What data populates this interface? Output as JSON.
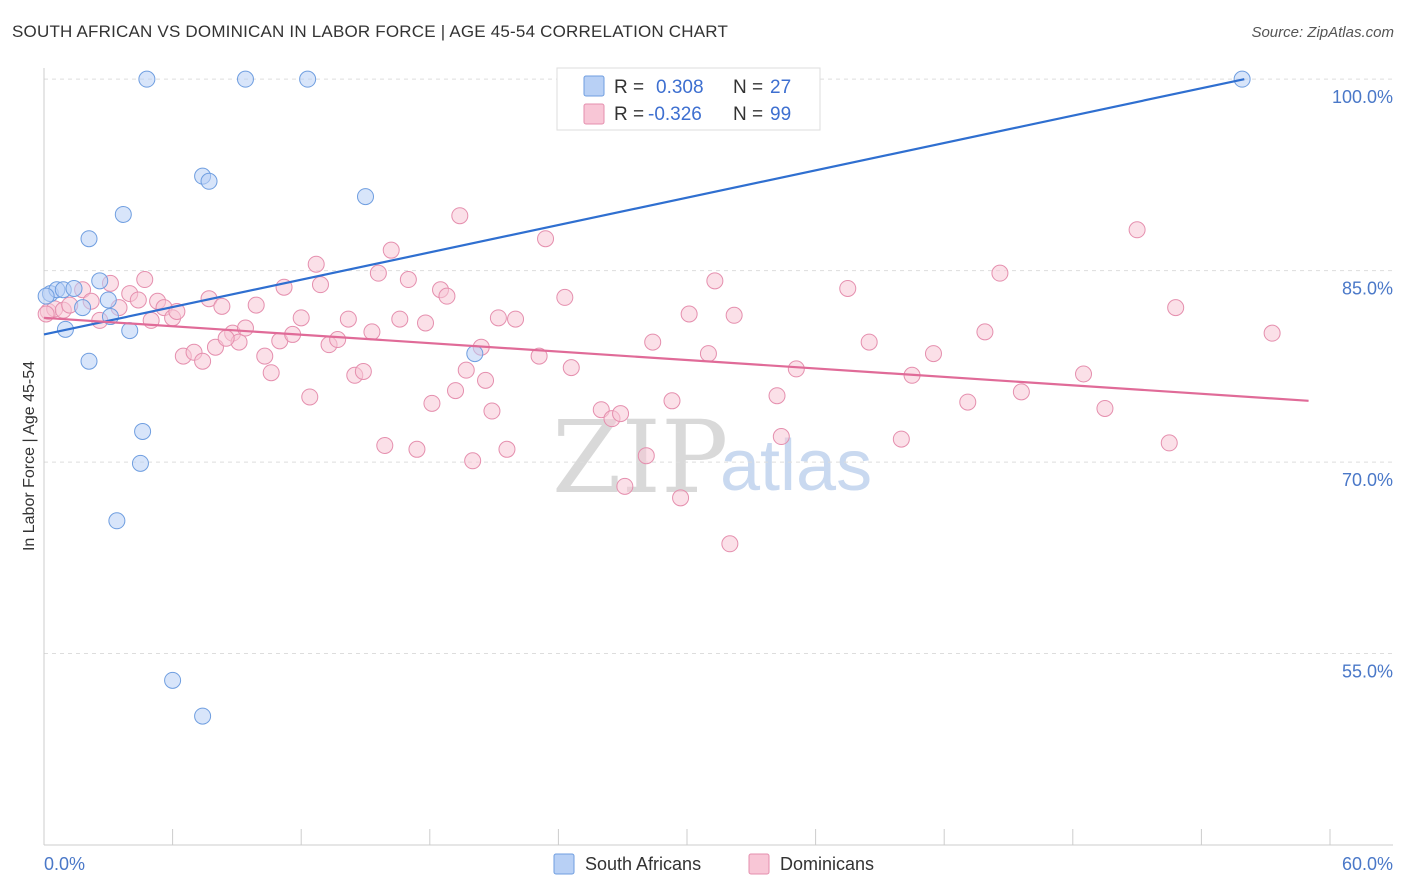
{
  "title": "SOUTH AFRICAN VS DOMINICAN IN LABOR FORCE | AGE 45-54 CORRELATION CHART",
  "source": "Source: ZipAtlas.com",
  "watermark": {
    "zip": "ZIP",
    "atlas": "atlas"
  },
  "colors": {
    "blue_fill": "#b8d0f5",
    "blue_stroke": "#6f9ee0",
    "blue_line": "#2f6fd0",
    "pink_fill": "#f8c6d6",
    "pink_stroke": "#e58fae",
    "pink_line": "#e06b98",
    "grid": "#dddddd",
    "axis_text": "#4a78c8"
  },
  "legend": {
    "rows": [
      {
        "r_label": "R =",
        "r_value": "0.308",
        "n_label": "N =",
        "n_value": "27"
      },
      {
        "r_label": "R =",
        "r_value": "-0.326",
        "n_label": "N =",
        "n_value": "99"
      }
    ]
  },
  "bottom_legend": [
    "South Africans",
    "Dominicans"
  ],
  "chart_data": {
    "type": "scatter",
    "title": "SOUTH AFRICAN VS DOMINICAN IN LABOR FORCE | AGE 45-54 CORRELATION CHART",
    "xlabel": "",
    "ylabel": "In Labor Force | Age 45-54",
    "xlim": [
      0,
      60
    ],
    "ylim": [
      40,
      101.5
    ],
    "x_tick_labels": [
      "0.0%",
      "60.0%"
    ],
    "y_ticks": [
      {
        "value": 100,
        "label": "100.0%"
      },
      {
        "value": 85,
        "label": "85.0%"
      },
      {
        "value": 70,
        "label": "70.0%"
      },
      {
        "value": 55,
        "label": "55.0%"
      }
    ],
    "gridlines": true,
    "series": [
      {
        "name": "South Africans",
        "color": "blue",
        "trend": {
          "x": [
            0,
            56
          ],
          "y": [
            80.0,
            100.0
          ]
        },
        "points": [
          [
            0.3,
            83.2
          ],
          [
            0.6,
            83.5
          ],
          [
            0.9,
            83.5
          ],
          [
            1.0,
            80.4
          ],
          [
            1.4,
            83.6
          ],
          [
            1.8,
            82.1
          ],
          [
            2.1,
            87.5
          ],
          [
            2.1,
            77.9
          ],
          [
            2.6,
            84.2
          ],
          [
            3.0,
            82.7
          ],
          [
            3.1,
            81.4
          ],
          [
            3.7,
            89.4
          ],
          [
            4.0,
            80.3
          ],
          [
            4.5,
            69.9
          ],
          [
            4.6,
            72.4
          ],
          [
            4.8,
            100.0
          ],
          [
            3.4,
            65.4
          ],
          [
            6.0,
            52.9
          ],
          [
            7.4,
            92.4
          ],
          [
            7.7,
            92.0
          ],
          [
            7.4,
            50.1
          ],
          [
            9.4,
            100.0
          ],
          [
            12.3,
            100.0
          ],
          [
            15.0,
            90.8
          ],
          [
            20.1,
            78.5
          ],
          [
            55.9,
            100.0
          ],
          [
            0.1,
            83.0
          ]
        ]
      },
      {
        "name": "Dominicans",
        "color": "pink",
        "trend": {
          "x": [
            0,
            59
          ],
          "y": [
            81.3,
            74.8
          ]
        },
        "points": [
          [
            0.2,
            81.8
          ],
          [
            0.5,
            82.0
          ],
          [
            0.9,
            81.9
          ],
          [
            1.2,
            82.3
          ],
          [
            1.8,
            83.5
          ],
          [
            2.2,
            82.6
          ],
          [
            2.6,
            81.1
          ],
          [
            3.1,
            84.0
          ],
          [
            3.5,
            82.1
          ],
          [
            4.0,
            83.2
          ],
          [
            4.4,
            82.7
          ],
          [
            4.7,
            84.3
          ],
          [
            5.0,
            81.1
          ],
          [
            5.3,
            82.6
          ],
          [
            5.6,
            82.1
          ],
          [
            6.0,
            81.3
          ],
          [
            6.2,
            81.8
          ],
          [
            6.5,
            78.3
          ],
          [
            7.0,
            78.6
          ],
          [
            7.4,
            77.9
          ],
          [
            7.7,
            82.8
          ],
          [
            8.0,
            79.0
          ],
          [
            8.3,
            82.2
          ],
          [
            8.8,
            80.1
          ],
          [
            9.1,
            79.4
          ],
          [
            9.4,
            80.5
          ],
          [
            9.9,
            82.3
          ],
          [
            10.3,
            78.3
          ],
          [
            10.6,
            77.0
          ],
          [
            11.0,
            79.5
          ],
          [
            11.2,
            83.7
          ],
          [
            11.6,
            80.0
          ],
          [
            12.0,
            81.3
          ],
          [
            12.4,
            75.1
          ],
          [
            12.7,
            85.5
          ],
          [
            12.9,
            83.9
          ],
          [
            13.3,
            79.2
          ],
          [
            13.7,
            79.6
          ],
          [
            14.2,
            81.2
          ],
          [
            14.5,
            76.8
          ],
          [
            14.9,
            77.1
          ],
          [
            15.3,
            80.2
          ],
          [
            15.6,
            84.8
          ],
          [
            15.9,
            71.3
          ],
          [
            16.2,
            86.6
          ],
          [
            16.6,
            81.2
          ],
          [
            17.0,
            84.3
          ],
          [
            17.4,
            71.0
          ],
          [
            17.8,
            80.9
          ],
          [
            18.1,
            74.6
          ],
          [
            18.5,
            83.5
          ],
          [
            18.8,
            83.0
          ],
          [
            19.2,
            75.6
          ],
          [
            19.4,
            89.3
          ],
          [
            19.7,
            77.2
          ],
          [
            20.0,
            70.1
          ],
          [
            20.4,
            79.0
          ],
          [
            20.6,
            76.4
          ],
          [
            20.9,
            74.0
          ],
          [
            21.2,
            81.3
          ],
          [
            21.6,
            71.0
          ],
          [
            22.0,
            81.2
          ],
          [
            23.1,
            78.3
          ],
          [
            23.4,
            87.5
          ],
          [
            24.3,
            82.9
          ],
          [
            24.6,
            77.4
          ],
          [
            26.0,
            74.1
          ],
          [
            26.5,
            73.4
          ],
          [
            26.9,
            73.8
          ],
          [
            27.1,
            68.1
          ],
          [
            28.1,
            70.5
          ],
          [
            28.4,
            79.4
          ],
          [
            29.3,
            74.8
          ],
          [
            29.7,
            67.2
          ],
          [
            30.1,
            81.6
          ],
          [
            31.0,
            78.5
          ],
          [
            31.3,
            84.2
          ],
          [
            32.0,
            63.6
          ],
          [
            32.2,
            81.5
          ],
          [
            34.2,
            75.2
          ],
          [
            34.4,
            72.0
          ],
          [
            35.1,
            77.3
          ],
          [
            37.5,
            83.6
          ],
          [
            38.5,
            79.4
          ],
          [
            40.0,
            71.8
          ],
          [
            40.5,
            76.8
          ],
          [
            41.5,
            78.5
          ],
          [
            43.1,
            74.7
          ],
          [
            43.9,
            80.2
          ],
          [
            44.6,
            84.8
          ],
          [
            45.6,
            75.5
          ],
          [
            48.5,
            76.9
          ],
          [
            49.5,
            74.2
          ],
          [
            51.0,
            88.2
          ],
          [
            52.5,
            71.5
          ],
          [
            52.8,
            82.1
          ],
          [
            57.3,
            80.1
          ],
          [
            8.5,
            79.7
          ],
          [
            0.1,
            81.6
          ]
        ]
      }
    ]
  }
}
